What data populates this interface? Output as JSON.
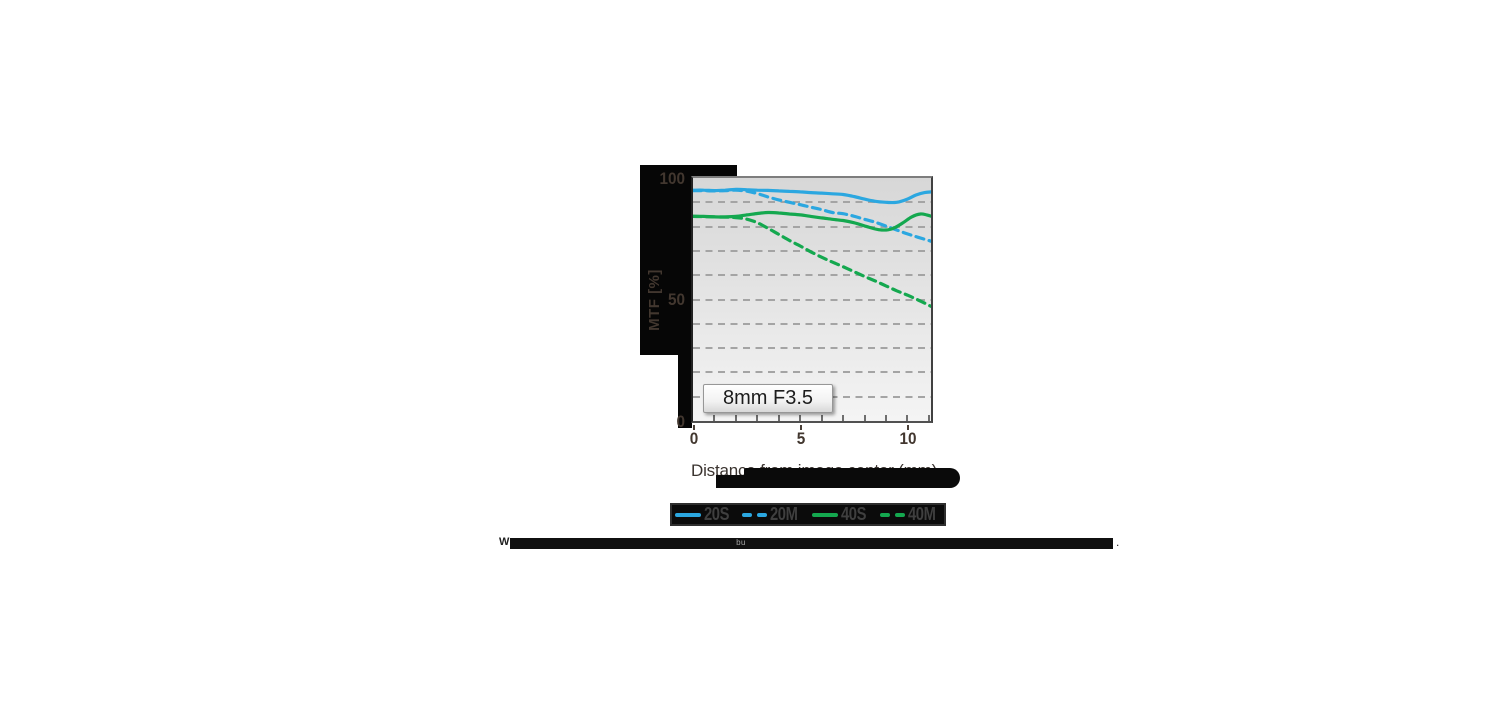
{
  "badge_label": "8mm F3.5",
  "axes": {
    "y_label": "MTF [%]",
    "x_label": "Distance from image center (mm)",
    "y_tick_labels": [
      "100",
      "50",
      "0"
    ],
    "x_tick_labels": [
      "0",
      "5",
      "10"
    ]
  },
  "legend": {
    "items": [
      {
        "label": "20S",
        "color": "#2BA7E0",
        "style": "solid"
      },
      {
        "label": "20M",
        "color": "#2BA7E0",
        "style": "dashed"
      },
      {
        "label": "40S",
        "color": "#14A84F",
        "style": "solid"
      },
      {
        "label": "40M",
        "color": "#14A84F",
        "style": "dashed"
      }
    ]
  },
  "footnote": {
    "leading": "W",
    "marker": "bu",
    "trailing": "."
  },
  "colors": {
    "blue": "#2BA7E0",
    "green": "#14A84F",
    "axis_text": "#42372f",
    "grid": "#a4a4a4",
    "black_panel": "#060606"
  },
  "chart_data": {
    "type": "line",
    "title": "8mm F3.5",
    "xlabel": "Distance from image center (mm)",
    "ylabel": "MTF [%]",
    "xlim": [
      0,
      11.1
    ],
    "ylim": [
      0,
      100
    ],
    "x_ticks": [
      0,
      5,
      10
    ],
    "y_ticks": [
      0,
      50,
      100
    ],
    "grid_y": [
      10,
      20,
      30,
      40,
      50,
      60,
      70,
      80,
      90
    ],
    "x_minor_ticks": [
      1,
      2,
      3,
      4,
      5,
      6,
      7,
      8,
      9,
      10,
      11
    ],
    "grid_style": "dashed",
    "legend_position": "below",
    "series": [
      {
        "name": "20S",
        "color": "#2BA7E0",
        "style": "solid",
        "points": [
          [
            0,
            95
          ],
          [
            0.5,
            95
          ],
          [
            1,
            94.8
          ],
          [
            1.5,
            95
          ],
          [
            2,
            95.3
          ],
          [
            2.5,
            95.2
          ],
          [
            3,
            95
          ],
          [
            3.5,
            94.9
          ],
          [
            4,
            94.7
          ],
          [
            4.5,
            94.5
          ],
          [
            5,
            94.3
          ],
          [
            5.5,
            94
          ],
          [
            6,
            93.8
          ],
          [
            6.5,
            93.5
          ],
          [
            7,
            93.2
          ],
          [
            7.5,
            92.4
          ],
          [
            8,
            91.3
          ],
          [
            8.5,
            90.4
          ],
          [
            9,
            90
          ],
          [
            9.5,
            90
          ],
          [
            10,
            91.3
          ],
          [
            10.4,
            93
          ],
          [
            10.8,
            94
          ],
          [
            11.1,
            94.3
          ]
        ]
      },
      {
        "name": "20M",
        "color": "#2BA7E0",
        "style": "dashed",
        "points": [
          [
            0,
            94.8
          ],
          [
            0.5,
            94.8
          ],
          [
            1,
            94.7
          ],
          [
            1.5,
            94.8
          ],
          [
            2,
            95
          ],
          [
            2.5,
            94.6
          ],
          [
            3,
            93.6
          ],
          [
            3.5,
            92.2
          ],
          [
            4,
            91
          ],
          [
            4.5,
            90
          ],
          [
            5,
            89
          ],
          [
            5.5,
            88
          ],
          [
            6,
            87
          ],
          [
            6.5,
            85.8
          ],
          [
            7,
            85.3
          ],
          [
            7.5,
            84.3
          ],
          [
            8,
            83
          ],
          [
            8.5,
            81.8
          ],
          [
            9,
            80.2
          ],
          [
            9.5,
            78.6
          ],
          [
            10,
            77
          ],
          [
            10.5,
            75.6
          ],
          [
            11.1,
            74
          ]
        ]
      },
      {
        "name": "40S",
        "color": "#14A84F",
        "style": "solid",
        "points": [
          [
            0,
            84.3
          ],
          [
            0.5,
            84.2
          ],
          [
            1,
            84
          ],
          [
            1.5,
            84
          ],
          [
            2,
            84.2
          ],
          [
            2.5,
            84.8
          ],
          [
            3,
            85.4
          ],
          [
            3.5,
            85.8
          ],
          [
            4,
            85.6
          ],
          [
            4.5,
            85.2
          ],
          [
            5,
            84.8
          ],
          [
            5.5,
            84.2
          ],
          [
            6,
            83.6
          ],
          [
            6.5,
            83
          ],
          [
            7,
            82.5
          ],
          [
            7.5,
            81.6
          ],
          [
            8,
            80.3
          ],
          [
            8.5,
            79
          ],
          [
            8.8,
            78.6
          ],
          [
            9.1,
            78.7
          ],
          [
            9.4,
            79.5
          ],
          [
            9.8,
            81.6
          ],
          [
            10.2,
            84
          ],
          [
            10.6,
            85.2
          ],
          [
            10.9,
            84.8
          ],
          [
            11.1,
            84.3
          ]
        ]
      },
      {
        "name": "40M",
        "color": "#14A84F",
        "style": "dashed",
        "points": [
          [
            0,
            84.2
          ],
          [
            0.5,
            84.1
          ],
          [
            1,
            84
          ],
          [
            1.5,
            83.9
          ],
          [
            2,
            83.7
          ],
          [
            2.5,
            83.1
          ],
          [
            3,
            81.6
          ],
          [
            3.5,
            79.3
          ],
          [
            4,
            76.8
          ],
          [
            4.5,
            74.3
          ],
          [
            5,
            72
          ],
          [
            5.5,
            69.6
          ],
          [
            6,
            67.4
          ],
          [
            6.5,
            65.4
          ],
          [
            7,
            63.5
          ],
          [
            7.5,
            61.5
          ],
          [
            8,
            59.5
          ],
          [
            8.5,
            57.6
          ],
          [
            9,
            55.6
          ],
          [
            9.5,
            53.6
          ],
          [
            10,
            51.8
          ],
          [
            10.5,
            49.8
          ],
          [
            11.1,
            47.2
          ]
        ]
      }
    ]
  }
}
